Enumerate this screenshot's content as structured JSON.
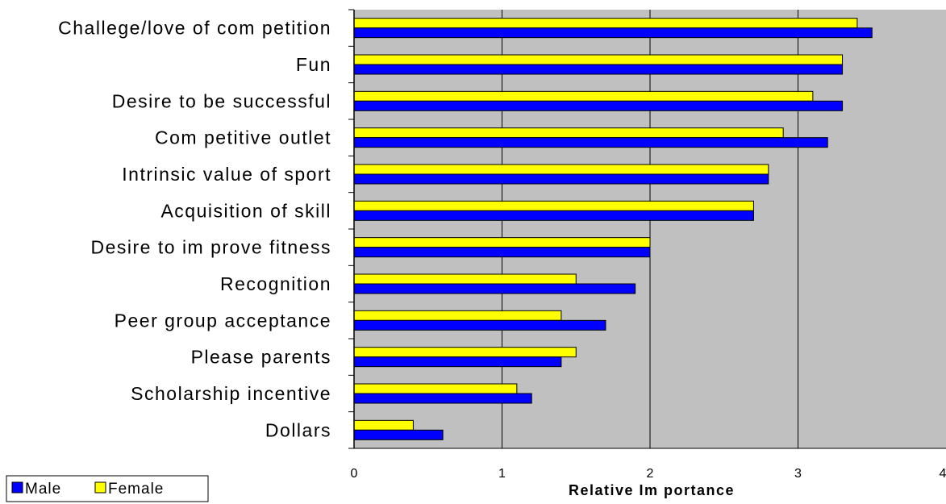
{
  "chart_data": {
    "type": "bar",
    "orientation": "horizontal",
    "categories": [
      "Challege/love of com petition",
      "Fun",
      "Desire to be successful",
      "Com petitive outlet",
      "Intrinsic value of sport",
      "Acquisition of skill",
      "Desire to im prove fitness",
      "Recognition",
      "Peer group acceptance",
      "Please parents",
      "Scholarship incentive",
      "Dollars"
    ],
    "series": [
      {
        "name": "Female",
        "color": "#ffff00",
        "values": [
          3.4,
          3.3,
          3.1,
          2.9,
          2.8,
          2.7,
          2.0,
          1.5,
          1.4,
          1.5,
          1.1,
          0.4
        ]
      },
      {
        "name": "Male",
        "color": "#0000ff",
        "values": [
          3.5,
          3.3,
          3.3,
          3.2,
          2.8,
          2.7,
          2.0,
          1.9,
          1.7,
          1.4,
          1.2,
          0.6
        ]
      }
    ],
    "xlabel": "Relative Im portance",
    "ylabel": "",
    "xlim": [
      0,
      4
    ],
    "xticks": [
      "0",
      "1",
      "2",
      "3",
      "4"
    ],
    "grid": true,
    "plot_background": "#c0c0c0",
    "legend": {
      "placement": "bottom-left",
      "entries": [
        "Male",
        "Female"
      ]
    }
  }
}
